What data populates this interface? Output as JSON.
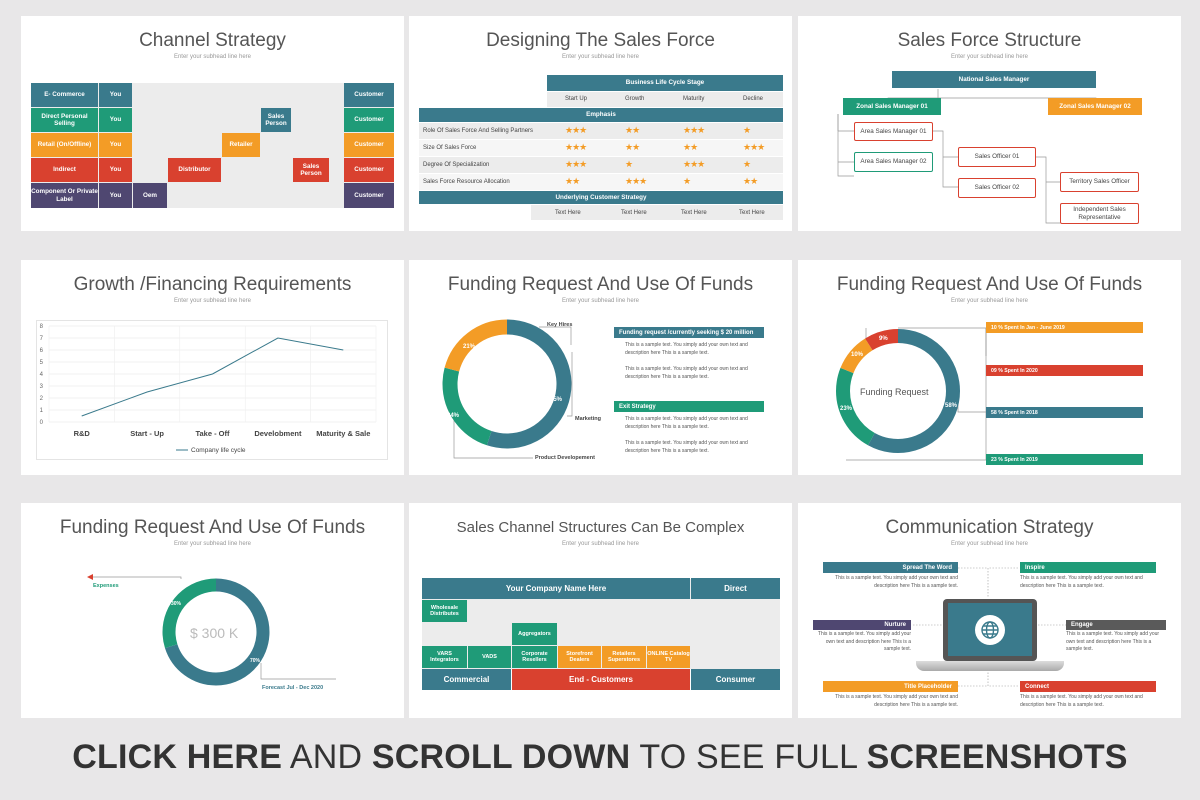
{
  "colors": {
    "teal": "#3a7a8c",
    "green": "#1f9b78",
    "orange": "#f39c26",
    "red": "#d9412f",
    "purple": "#4f4771",
    "dark": "#333333"
  },
  "subhead": "Enter your subhead line here",
  "s1": {
    "title": "Channel Strategy",
    "rows": [
      {
        "label": "E- Commerce",
        "you": "You",
        "customer": "Customer"
      },
      {
        "label": "Direct Personal Selling",
        "you": "You",
        "customer": "Customer"
      },
      {
        "label": "Retail (On/Offline)",
        "you": "You",
        "customer": "Customer"
      },
      {
        "label": "Indirect",
        "you": "You",
        "customer": "Customer"
      },
      {
        "label": "Component Or Private Label",
        "you": "You",
        "customer": "Customer"
      }
    ],
    "sales_person": "Sales Person",
    "retailer": "Retailer",
    "distributor": "Distributor",
    "sales_person2": "Sales Person",
    "oem": "Oem"
  },
  "s2": {
    "title": "Designing The Sales Force",
    "stage": "Business Life Cycle Stage",
    "cols": [
      "Start Up",
      "Growth",
      "Maturity",
      "Decline"
    ],
    "emphasis": "Emphasis",
    "rows": [
      {
        "label": "Role Of Sales Force And Selling Partners",
        "stars": [
          "★★★",
          "★★",
          "★★★",
          "★"
        ]
      },
      {
        "label": "Size Of Sales Force",
        "stars": [
          "★★★",
          "★★",
          "★★",
          "★★★"
        ]
      },
      {
        "label": "Degree Of Specialization",
        "stars": [
          "★★★",
          "★",
          "★★★",
          "★"
        ]
      },
      {
        "label": "Sales Force Resource Allocation",
        "stars": [
          "★★",
          "★★★",
          "★",
          "★★"
        ]
      }
    ],
    "underlying": "Underlying Customer Strategy",
    "texts": [
      "Text Here",
      "Text Here",
      "Text Here",
      "Text Here"
    ]
  },
  "s3": {
    "title": "Sales Force Structure",
    "national": "National Sales Manager",
    "zonal1": "Zonal Sales Manager 01",
    "zonal2": "Zonal Sales Manager 02",
    "area1": "Area Sales Manager 01",
    "area2": "Area Sales Manager 02",
    "officer1": "Sales Officer 01",
    "officer2": "Sales Officer 02",
    "territory": "Territory Sales Officer",
    "independent": "Independent Sales Representative"
  },
  "s4": {
    "title": "Growth /Financing Requirements",
    "legend": "Company life cycle",
    "chart_data": {
      "type": "line",
      "categories": [
        "R&D",
        "Start - Up",
        "Take - Off",
        "Develobment",
        "Maturity & Sale"
      ],
      "series": [
        {
          "name": "Company life cycle",
          "values": [
            0.5,
            2.5,
            4,
            7,
            6
          ]
        }
      ],
      "ylim": [
        0,
        8
      ],
      "yticks": [
        0,
        1,
        2,
        3,
        4,
        5,
        6,
        7,
        8
      ],
      "grid": true
    }
  },
  "s5": {
    "title": "Funding Request And Use Of Funds",
    "p21": "21%",
    "p24": "24%",
    "p55": "55%",
    "key_hires": "Key Hires",
    "marketing": "Marketing",
    "product": "Product Developement",
    "funding_hdr": "Funding request /currently seeking $ 20 million",
    "exit_hdr": "Exit Strategy",
    "para": "This is a sample text. You simply add your own text and description here This is a sample text.",
    "slices": [
      {
        "label": "21%",
        "value": 21,
        "color": "#f39c26"
      },
      {
        "label": "24%",
        "value": 24,
        "color": "#1f9b78"
      },
      {
        "label": "55%",
        "value": 55,
        "color": "#3a7a8c"
      }
    ]
  },
  "s6": {
    "title": "Funding Request And Use Of Funds",
    "center": "Funding Request",
    "p9": "9%",
    "p10": "10%",
    "p23": "23%",
    "p58": "58%",
    "bars": [
      "10 % Spent In Jan - June 2019",
      "09 % Spent In 2020",
      "58 % Spent In 2018",
      "23 % Spent In 2019"
    ]
  },
  "s7": {
    "title": "Funding Request And Use Of Funds",
    "center": "$ 300 K",
    "p30": "30%",
    "p70": "70%",
    "expenses": "Expenses",
    "forecast": "Forecast Jul - Dec 2020"
  },
  "s8": {
    "title": "Sales Channel Structures Can Be Complex",
    "company": "Your Company Name Here",
    "direct": "Direct",
    "wholesale": "Wholesale Distributes",
    "aggregators": "Aggregators",
    "vars": "VARS Integrators",
    "vads": "VADS",
    "corporate": "Corporate Resellers",
    "storefront": "Storefront Dealers",
    "retailers": "Retailers Superstores",
    "online": "ONLINE Catalog TV",
    "commercial": "Commercial",
    "end": "End - Customers",
    "consumer": "Consumer"
  },
  "s9": {
    "title": "Communication Strategy",
    "spread": "Spread The Word",
    "inspire": "Inspire",
    "nurture": "Nurture",
    "engage": "Engage",
    "title_ph": "Title Placeholder",
    "connect": "Connect",
    "para": "This is a sample text. You simply add your own text and description here This is a sample text."
  },
  "footer": {
    "a": "CLICK HERE",
    "b": "AND",
    "c": "SCROLL DOWN",
    "d": "TO SEE FULL",
    "e": "SCREENSHOTS"
  }
}
